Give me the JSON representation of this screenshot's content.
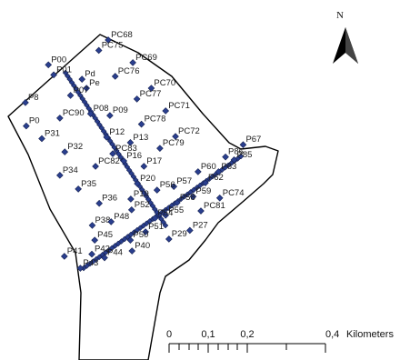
{
  "north": {
    "letter": "N",
    "icon": "north-arrow-icon"
  },
  "scale": {
    "ticks": [
      "0",
      "0,1",
      "0,2",
      "0,4"
    ],
    "unit": "Kilometers"
  },
  "points": [
    {
      "label": "PC68",
      "x": 0.264,
      "y": 0.111
    },
    {
      "label": "PC75",
      "x": 0.241,
      "y": 0.14
    },
    {
      "label": "PC69",
      "x": 0.324,
      "y": 0.174
    },
    {
      "label": "P00",
      "x": 0.118,
      "y": 0.18
    },
    {
      "label": "P01",
      "x": 0.131,
      "y": 0.208
    },
    {
      "label": "Pd",
      "x": 0.2,
      "y": 0.22
    },
    {
      "label": "PC76",
      "x": 0.281,
      "y": 0.212
    },
    {
      "label": "Pe",
      "x": 0.211,
      "y": 0.245
    },
    {
      "label": "PC70",
      "x": 0.369,
      "y": 0.245
    },
    {
      "label": "P07",
      "x": 0.172,
      "y": 0.265
    },
    {
      "label": "PC77",
      "x": 0.334,
      "y": 0.275
    },
    {
      "label": "P8",
      "x": 0.062,
      "y": 0.285
    },
    {
      "label": "PC90",
      "x": 0.146,
      "y": 0.328
    },
    {
      "label": "P08",
      "x": 0.221,
      "y": 0.316
    },
    {
      "label": "P09",
      "x": 0.268,
      "y": 0.321
    },
    {
      "label": "PC71",
      "x": 0.404,
      "y": 0.308
    },
    {
      "label": "PC78",
      "x": 0.345,
      "y": 0.345
    },
    {
      "label": "P0",
      "x": 0.064,
      "y": 0.35
    },
    {
      "label": "P31",
      "x": 0.102,
      "y": 0.385
    },
    {
      "label": "P12",
      "x": 0.26,
      "y": 0.381
    },
    {
      "label": "P13",
      "x": 0.318,
      "y": 0.396
    },
    {
      "label": "PC72",
      "x": 0.428,
      "y": 0.379
    },
    {
      "label": "P32",
      "x": 0.158,
      "y": 0.422
    },
    {
      "label": "PC79",
      "x": 0.39,
      "y": 0.412
    },
    {
      "label": "PC83",
      "x": 0.275,
      "y": 0.427
    },
    {
      "label": "P16",
      "x": 0.302,
      "y": 0.447
    },
    {
      "label": "P17",
      "x": 0.351,
      "y": 0.462
    },
    {
      "label": "PC82",
      "x": 0.233,
      "y": 0.462
    },
    {
      "label": "P86",
      "x": 0.55,
      "y": 0.436
    },
    {
      "label": "P67",
      "x": 0.593,
      "y": 0.402
    },
    {
      "label": "P85",
      "x": 0.571,
      "y": 0.444
    },
    {
      "label": "P63",
      "x": 0.533,
      "y": 0.477
    },
    {
      "label": "P60",
      "x": 0.483,
      "y": 0.477
    },
    {
      "label": "P62",
      "x": 0.501,
      "y": 0.508
    },
    {
      "label": "P34",
      "x": 0.146,
      "y": 0.487
    },
    {
      "label": "P20",
      "x": 0.335,
      "y": 0.51
    },
    {
      "label": "P57",
      "x": 0.424,
      "y": 0.518
    },
    {
      "label": "P56",
      "x": 0.383,
      "y": 0.528
    },
    {
      "label": "P35",
      "x": 0.191,
      "y": 0.525
    },
    {
      "label": "P59",
      "x": 0.471,
      "y": 0.546
    },
    {
      "label": "PC74",
      "x": 0.536,
      "y": 0.55
    },
    {
      "label": "P19",
      "x": 0.319,
      "y": 0.553
    },
    {
      "label": "P58",
      "x": 0.432,
      "y": 0.563
    },
    {
      "label": "P36",
      "x": 0.242,
      "y": 0.565
    },
    {
      "label": "P55",
      "x": 0.404,
      "y": 0.598
    },
    {
      "label": "P52",
      "x": 0.321,
      "y": 0.583
    },
    {
      "label": "PC81",
      "x": 0.49,
      "y": 0.586
    },
    {
      "label": "P54",
      "x": 0.378,
      "y": 0.606
    },
    {
      "label": "P38",
      "x": 0.225,
      "y": 0.626
    },
    {
      "label": "P48",
      "x": 0.271,
      "y": 0.616
    },
    {
      "label": "P27",
      "x": 0.463,
      "y": 0.64
    },
    {
      "label": "P51",
      "x": 0.355,
      "y": 0.644
    },
    {
      "label": "P29",
      "x": 0.412,
      "y": 0.664
    },
    {
      "label": "P45",
      "x": 0.231,
      "y": 0.667
    },
    {
      "label": "P50",
      "x": 0.318,
      "y": 0.667
    },
    {
      "label": "P40",
      "x": 0.322,
      "y": 0.697
    },
    {
      "label": "P42",
      "x": 0.224,
      "y": 0.706
    },
    {
      "label": "P41",
      "x": 0.157,
      "y": 0.712
    },
    {
      "label": "P44",
      "x": 0.255,
      "y": 0.716
    },
    {
      "label": "P43",
      "x": 0.196,
      "y": 0.745
    }
  ]
}
